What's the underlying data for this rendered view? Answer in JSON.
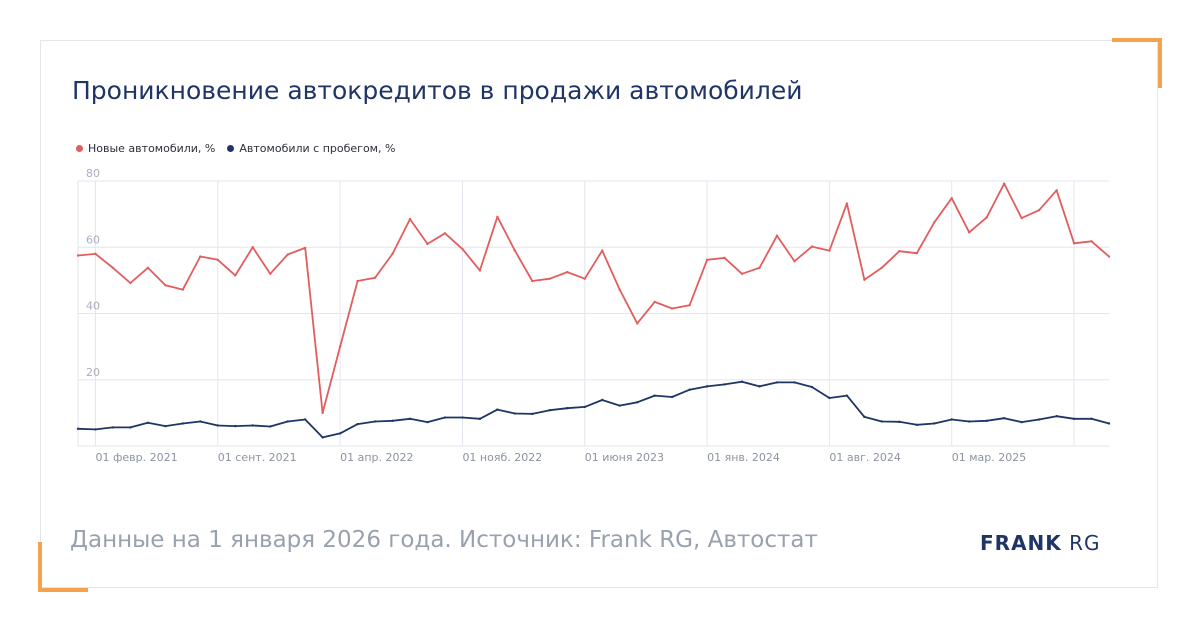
{
  "title": "Проникновение автокредитов в продажи автомобилей",
  "footer": "Данные на 1 января 2026 года. Источник: Frank RG, Автостат",
  "logo": {
    "bold": "FRANK",
    "light": "RG"
  },
  "colors": {
    "new": "#e25d5d",
    "used": "#1f3566",
    "accent": "#f4a24c",
    "grid": "#e3e6f0"
  },
  "chart_data": {
    "type": "line",
    "title": "Проникновение автокредитов в продажи автомобилей",
    "xlabel": "",
    "ylabel": "",
    "ylim": [
      0,
      80
    ],
    "yticks": [
      20,
      40,
      60,
      80
    ],
    "x_start": "2021-01",
    "x_end": "2025-12",
    "x_tick_labels": [
      {
        "month": "2021-02",
        "label": "01 февр. 2021"
      },
      {
        "month": "2021-09",
        "label": "01 сент. 2021"
      },
      {
        "month": "2022-04",
        "label": "01 апр. 2022"
      },
      {
        "month": "2022-11",
        "label": "01 нояб. 2022"
      },
      {
        "month": "2023-06",
        "label": "01 июня 2023"
      },
      {
        "month": "2024-01",
        "label": "01 янв. 2024"
      },
      {
        "month": "2024-08",
        "label": "01 авг. 2024"
      },
      {
        "month": "2025-03",
        "label": "01 мар. 2025"
      },
      {
        "month": "2025-10",
        "label": ""
      }
    ],
    "grid": true,
    "legend_position": "top-left",
    "series": [
      {
        "name": "Новые автомобили, %",
        "color": "#e25d5d",
        "values": [
          57.5,
          58,
          53.8,
          49.2,
          53.8,
          48.5,
          47.2,
          57.2,
          56.2,
          51.5,
          60,
          52,
          57.8,
          59.8,
          10,
          30,
          49.8,
          50.8,
          58,
          68.5,
          61,
          64.2,
          59.5,
          53,
          69.2,
          59,
          49.8,
          50.5,
          52.5,
          50.5,
          59,
          47.2,
          37,
          43.5,
          41.5,
          42.5,
          56.2,
          56.8,
          52,
          53.8,
          63.5,
          55.8,
          60.2,
          59,
          73.2,
          50.2,
          53.8,
          58.8,
          58.2,
          67.5,
          74.8,
          64.5,
          69,
          79.2,
          68.8,
          71.2,
          77.2,
          61.2,
          61.8,
          57.2
        ]
      },
      {
        "name": "Автомобили с пробегом, %",
        "color": "#1f3566",
        "values": [
          5.2,
          5,
          5.6,
          5.6,
          7,
          6,
          6.8,
          7.4,
          6.2,
          6,
          6.2,
          5.9,
          7.4,
          8,
          2.6,
          3.8,
          6.6,
          7.4,
          7.6,
          8.2,
          7.2,
          8.6,
          8.6,
          8.2,
          11,
          9.8,
          9.7,
          10.8,
          11.4,
          11.8,
          13.9,
          12.2,
          13.2,
          15.2,
          14.8,
          17,
          18,
          18.6,
          19.4,
          18,
          19.2,
          19.2,
          17.8,
          14.5,
          15.2,
          8.8,
          7.4,
          7.3,
          6.4,
          6.8,
          8,
          7.4,
          7.6,
          8.4,
          7.2,
          8,
          9,
          8.2,
          8.2,
          6.8
        ]
      }
    ]
  }
}
